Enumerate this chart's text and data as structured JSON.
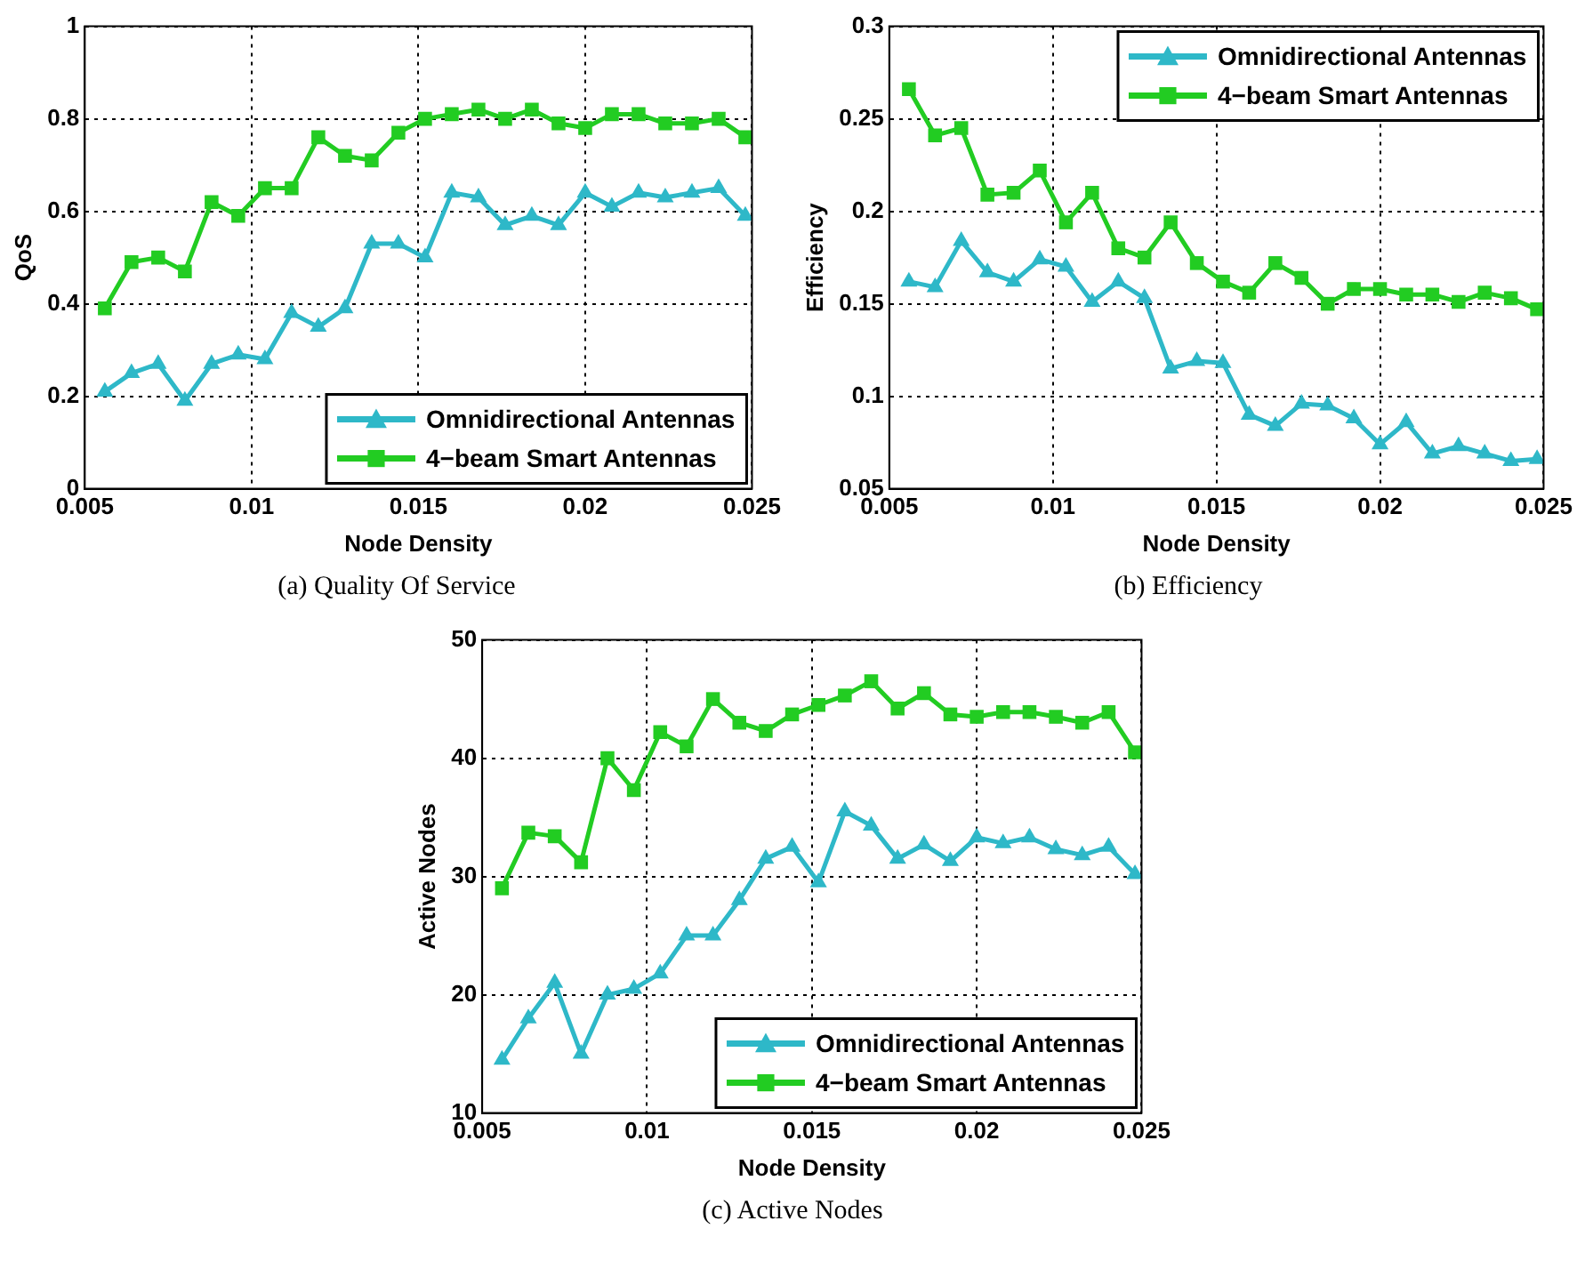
{
  "chart_data": [
    {
      "type": "line",
      "xlabel": "Node Density",
      "ylabel": "QoS",
      "annotations": [
        "(a) Quality Of Service"
      ],
      "x": [
        0.0056,
        0.0064,
        0.0072,
        0.008,
        0.0088,
        0.0096,
        0.0104,
        0.0112,
        0.012,
        0.0128,
        0.0136,
        0.0144,
        0.0152,
        0.016,
        0.0168,
        0.0176,
        0.0184,
        0.0192,
        0.02,
        0.0208,
        0.0216,
        0.0224,
        0.0232,
        0.024,
        0.0248
      ],
      "xlim": [
        0.005,
        0.025
      ],
      "xticks": [
        0.005,
        0.01,
        0.015,
        0.02,
        0.025
      ],
      "ylim": [
        0,
        1
      ],
      "yticks": [
        0,
        0.2,
        0.4,
        0.6,
        0.8,
        1
      ],
      "grid": true,
      "legend": "bottom right",
      "line_style": "solid",
      "series": [
        {
          "name": "Omnidirectional Antennas",
          "color": "#2eb8c8",
          "marker": "triangle",
          "values": [
            0.21,
            0.25,
            0.27,
            0.19,
            0.27,
            0.29,
            0.28,
            0.38,
            0.35,
            0.39,
            0.53,
            0.53,
            0.5,
            0.64,
            0.63,
            0.57,
            0.59,
            0.57,
            0.64,
            0.61,
            0.64,
            0.63,
            0.64,
            0.65,
            0.59
          ]
        },
        {
          "name": "4−beam Smart Antennas",
          "color": "#22cc22",
          "marker": "square",
          "values": [
            0.39,
            0.49,
            0.5,
            0.47,
            0.62,
            0.59,
            0.65,
            0.65,
            0.76,
            0.72,
            0.71,
            0.77,
            0.8,
            0.81,
            0.82,
            0.8,
            0.82,
            0.79,
            0.78,
            0.81,
            0.81,
            0.79,
            0.79,
            0.8,
            0.76
          ]
        }
      ]
    },
    {
      "type": "line",
      "xlabel": "Node Density",
      "ylabel": "Efficiency",
      "annotations": [
        "(b)  Efficiency"
      ],
      "x": [
        0.0056,
        0.0064,
        0.0072,
        0.008,
        0.0088,
        0.0096,
        0.0104,
        0.0112,
        0.012,
        0.0128,
        0.0136,
        0.0144,
        0.0152,
        0.016,
        0.0168,
        0.0176,
        0.0184,
        0.0192,
        0.02,
        0.0208,
        0.0216,
        0.0224,
        0.0232,
        0.024,
        0.0248
      ],
      "xlim": [
        0.005,
        0.025
      ],
      "xticks": [
        0.005,
        0.01,
        0.015,
        0.02,
        0.025
      ],
      "ylim": [
        0.05,
        0.3
      ],
      "yticks": [
        0.05,
        0.1,
        0.15,
        0.2,
        0.25,
        0.3
      ],
      "grid": true,
      "legend": "top right",
      "line_style": "solid",
      "series": [
        {
          "name": "Omnidirectional Antennas",
          "color": "#2eb8c8",
          "marker": "triangle",
          "values": [
            0.162,
            0.159,
            0.184,
            0.167,
            0.162,
            0.174,
            0.17,
            0.151,
            0.162,
            0.153,
            0.115,
            0.119,
            0.118,
            0.09,
            0.084,
            0.096,
            0.095,
            0.088,
            0.074,
            0.086,
            0.069,
            0.073,
            0.069,
            0.065,
            0.066
          ]
        },
        {
          "name": "4−beam Smart Antennas",
          "color": "#22cc22",
          "marker": "square",
          "values": [
            0.266,
            0.241,
            0.245,
            0.209,
            0.21,
            0.222,
            0.194,
            0.21,
            0.18,
            0.175,
            0.194,
            0.172,
            0.162,
            0.156,
            0.172,
            0.164,
            0.15,
            0.158,
            0.158,
            0.155,
            0.155,
            0.151,
            0.156,
            0.153,
            0.147
          ]
        }
      ]
    },
    {
      "type": "line",
      "xlabel": "Node Density",
      "ylabel": "Active Nodes",
      "annotations": [
        "(c)  Active Nodes"
      ],
      "x": [
        0.0056,
        0.0064,
        0.0072,
        0.008,
        0.0088,
        0.0096,
        0.0104,
        0.0112,
        0.012,
        0.0128,
        0.0136,
        0.0144,
        0.0152,
        0.016,
        0.0168,
        0.0176,
        0.0184,
        0.0192,
        0.02,
        0.0208,
        0.0216,
        0.0224,
        0.0232,
        0.024,
        0.0248
      ],
      "xlim": [
        0.005,
        0.025
      ],
      "xticks": [
        0.005,
        0.01,
        0.015,
        0.02,
        0.025
      ],
      "ylim": [
        10,
        50
      ],
      "yticks": [
        10,
        20,
        30,
        40,
        50
      ],
      "grid": true,
      "legend": "bottom right",
      "line_style": "solid",
      "series": [
        {
          "name": "Omnidirectional Antennas",
          "color": "#2eb8c8",
          "marker": "triangle",
          "values": [
            14.5,
            18,
            21,
            15,
            20,
            20.5,
            21.8,
            25,
            25,
            28,
            31.5,
            32.5,
            29.5,
            35.5,
            34.3,
            31.5,
            32.7,
            31.3,
            33.3,
            32.8,
            33.3,
            32.3,
            31.8,
            32.5,
            30.2
          ]
        },
        {
          "name": "4−beam Smart Antennas",
          "color": "#22cc22",
          "marker": "square",
          "values": [
            29,
            33.7,
            33.4,
            31.2,
            40,
            37.3,
            42.2,
            41,
            45,
            43,
            42.3,
            43.7,
            44.5,
            45.3,
            46.5,
            44.2,
            45.5,
            43.7,
            43.5,
            43.9,
            43.9,
            43.5,
            43,
            43.9,
            40.5
          ]
        }
      ]
    }
  ]
}
